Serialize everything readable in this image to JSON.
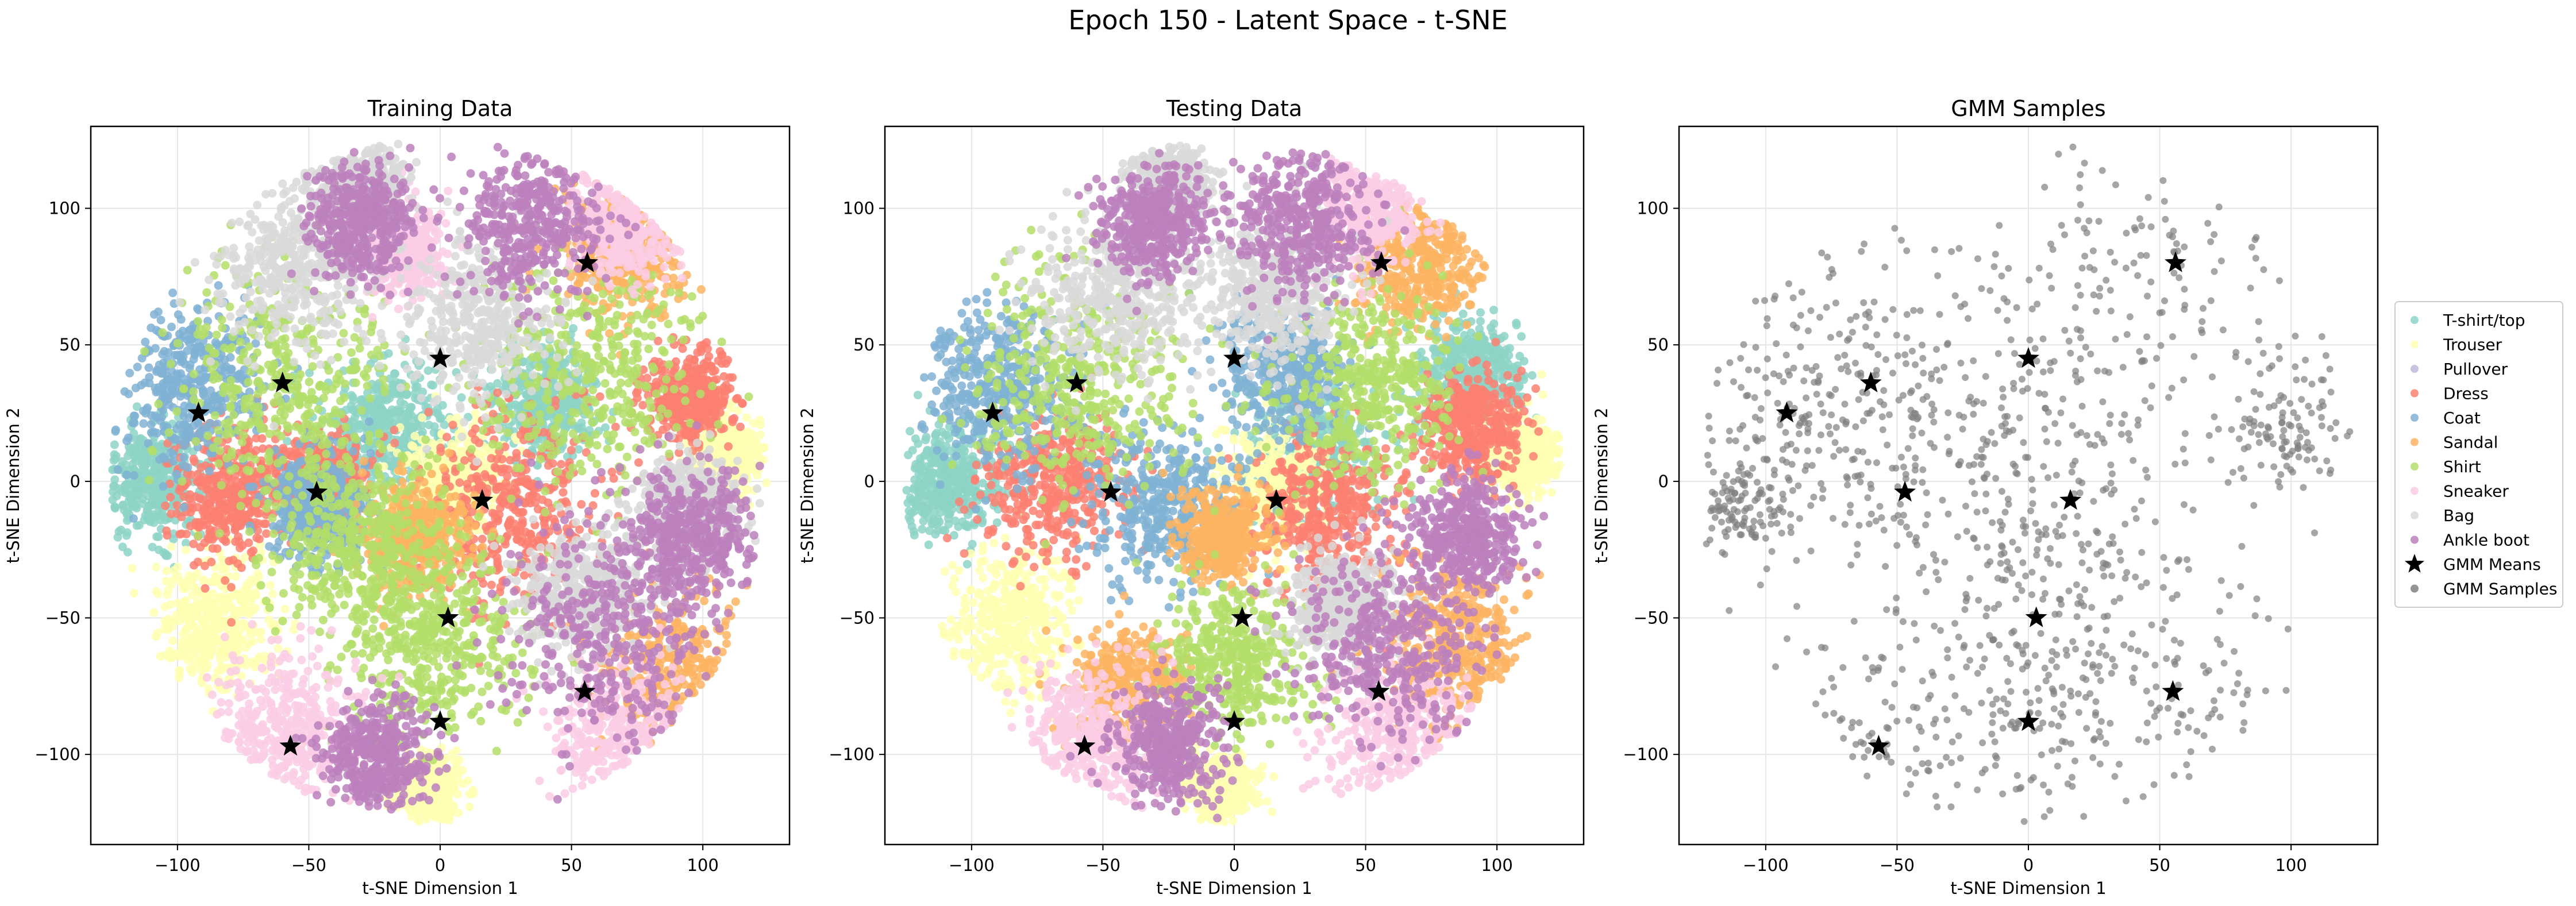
{
  "suptitle": "Epoch 150 - Latent Space - t-SNE",
  "legend": {
    "placement": "outside-right",
    "entries": [
      {
        "label": "T-shirt/top",
        "color": "#8dd3c7",
        "marker": "circle"
      },
      {
        "label": "Trouser",
        "color": "#ffffb3",
        "marker": "circle"
      },
      {
        "label": "Pullover",
        "color": "#bebada",
        "marker": "circle"
      },
      {
        "label": "Dress",
        "color": "#fb8072",
        "marker": "circle"
      },
      {
        "label": "Coat",
        "color": "#80b1d3",
        "marker": "circle"
      },
      {
        "label": "Sandal",
        "color": "#fdb462",
        "marker": "circle"
      },
      {
        "label": "Shirt",
        "color": "#b3de69",
        "marker": "circle"
      },
      {
        "label": "Sneaker",
        "color": "#fccde5",
        "marker": "circle"
      },
      {
        "label": "Bag",
        "color": "#d9d9d9",
        "marker": "circle"
      },
      {
        "label": "Ankle boot",
        "color": "#bc80bd",
        "marker": "circle"
      },
      {
        "label": "GMM Means",
        "color": "#000000",
        "marker": "star"
      },
      {
        "label": "GMM Samples",
        "color": "#808080",
        "marker": "circle"
      }
    ]
  },
  "chart_data": [
    {
      "type": "scatter",
      "title": "Training Data",
      "xlabel": "t-SNE Dimension 1",
      "ylabel": "t-SNE Dimension 2",
      "xlim": [
        -133,
        133
      ],
      "ylim": [
        -133,
        130
      ],
      "xticks": [
        -100,
        -50,
        0,
        50,
        100
      ],
      "yticks": [
        -100,
        -50,
        0,
        50,
        100
      ],
      "xtick_labels": [
        "−100",
        "−50",
        "0",
        "50",
        "100"
      ],
      "ytick_labels": [
        "−100",
        "−50",
        "0",
        "50",
        "100"
      ],
      "grid": true,
      "point_clusters": [
        {
          "class": "T-shirt/top",
          "color": "#8dd3c7",
          "x": -110,
          "y": 0,
          "spread": 10
        },
        {
          "class": "T-shirt/top",
          "color": "#8dd3c7",
          "x": -20,
          "y": 20,
          "spread": 12
        },
        {
          "class": "T-shirt/top",
          "color": "#8dd3c7",
          "x": 40,
          "y": 30,
          "spread": 10
        },
        {
          "class": "Trouser",
          "color": "#ffffb3",
          "x": -85,
          "y": -52,
          "spread": 12
        },
        {
          "class": "Trouser",
          "color": "#ffffb3",
          "x": 108,
          "y": 10,
          "spread": 7
        },
        {
          "class": "Trouser",
          "color": "#ffffb3",
          "x": 5,
          "y": 0,
          "spread": 10
        },
        {
          "class": "Trouser",
          "color": "#ffffb3",
          "x": -5,
          "y": -112,
          "spread": 6
        },
        {
          "class": "Dress",
          "color": "#fb8072",
          "x": -80,
          "y": -5,
          "spread": 12
        },
        {
          "class": "Dress",
          "color": "#fb8072",
          "x": 30,
          "y": -10,
          "spread": 18
        },
        {
          "class": "Dress",
          "color": "#fb8072",
          "x": 95,
          "y": 30,
          "spread": 8
        },
        {
          "class": "Dress",
          "color": "#fb8072",
          "x": -45,
          "y": 0,
          "spread": 8
        },
        {
          "class": "Coat",
          "color": "#80b1d3",
          "x": -95,
          "y": 35,
          "spread": 15
        },
        {
          "class": "Coat",
          "color": "#80b1d3",
          "x": -45,
          "y": -10,
          "spread": 10
        },
        {
          "class": "Sandal",
          "color": "#fdb462",
          "x": 70,
          "y": 85,
          "spread": 12
        },
        {
          "class": "Sandal",
          "color": "#fdb462",
          "x": 90,
          "y": -70,
          "spread": 15
        },
        {
          "class": "Sandal",
          "color": "#fdb462",
          "x": -10,
          "y": -20,
          "spread": 10
        },
        {
          "class": "Shirt",
          "color": "#b3de69",
          "x": -60,
          "y": 35,
          "spread": 22
        },
        {
          "class": "Shirt",
          "color": "#b3de69",
          "x": 55,
          "y": 40,
          "spread": 22
        },
        {
          "class": "Shirt",
          "color": "#b3de69",
          "x": 0,
          "y": -60,
          "spread": 18
        },
        {
          "class": "Shirt",
          "color": "#b3de69",
          "x": -30,
          "y": -25,
          "spread": 18
        },
        {
          "class": "Sneaker",
          "color": "#fccde5",
          "x": -60,
          "y": -92,
          "spread": 15
        },
        {
          "class": "Sneaker",
          "color": "#fccde5",
          "x": 70,
          "y": -95,
          "spread": 15
        },
        {
          "class": "Sneaker",
          "color": "#fccde5",
          "x": 70,
          "y": 95,
          "spread": 10
        },
        {
          "class": "Sneaker",
          "color": "#fccde5",
          "x": -15,
          "y": 85,
          "spread": 8
        },
        {
          "class": "Bag",
          "color": "#d9d9d9",
          "x": -55,
          "y": 80,
          "spread": 15
        },
        {
          "class": "Bag",
          "color": "#d9d9d9",
          "x": 15,
          "y": 60,
          "spread": 15
        },
        {
          "class": "Bag",
          "color": "#d9d9d9",
          "x": 55,
          "y": -40,
          "spread": 12
        },
        {
          "class": "Bag",
          "color": "#d9d9d9",
          "x": 95,
          "y": -10,
          "spread": 10
        },
        {
          "class": "Bag",
          "color": "#d9d9d9",
          "x": -30,
          "y": 110,
          "spread": 8
        },
        {
          "class": "Ankle boot",
          "color": "#bc80bd",
          "x": 35,
          "y": 95,
          "spread": 14
        },
        {
          "class": "Ankle boot",
          "color": "#bc80bd",
          "x": 65,
          "y": -55,
          "spread": 20
        },
        {
          "class": "Ankle boot",
          "color": "#bc80bd",
          "x": -30,
          "y": 95,
          "spread": 10
        },
        {
          "class": "Ankle boot",
          "color": "#bc80bd",
          "x": 95,
          "y": -20,
          "spread": 12
        },
        {
          "class": "Ankle boot",
          "color": "#bc80bd",
          "x": -25,
          "y": -100,
          "spread": 10
        }
      ],
      "gmm_means": [
        [
          56,
          80
        ],
        [
          0,
          45
        ],
        [
          -60,
          36
        ],
        [
          -92,
          25
        ],
        [
          -47,
          -4
        ],
        [
          16,
          -7
        ],
        [
          3,
          -50
        ],
        [
          0,
          -88
        ],
        [
          -57,
          -97
        ],
        [
          55,
          -77
        ]
      ]
    },
    {
      "type": "scatter",
      "title": "Testing Data",
      "xlabel": "t-SNE Dimension 1",
      "ylabel": "t-SNE Dimension 2",
      "xlim": [
        -133,
        133
      ],
      "ylim": [
        -133,
        130
      ],
      "xticks": [
        -100,
        -50,
        0,
        50,
        100
      ],
      "yticks": [
        -100,
        -50,
        0,
        50,
        100
      ],
      "xtick_labels": [
        "−100",
        "−50",
        "0",
        "50",
        "100"
      ],
      "ytick_labels": [
        "−100",
        "−50",
        "0",
        "50",
        "100"
      ],
      "grid": true,
      "point_clusters": [
        {
          "class": "T-shirt/top",
          "color": "#8dd3c7",
          "x": -110,
          "y": 0,
          "spread": 10
        },
        {
          "class": "T-shirt/top",
          "color": "#8dd3c7",
          "x": 30,
          "y": 10,
          "spread": 12
        },
        {
          "class": "T-shirt/top",
          "color": "#8dd3c7",
          "x": 90,
          "y": 40,
          "spread": 10
        },
        {
          "class": "Trouser",
          "color": "#ffffb3",
          "x": -85,
          "y": -52,
          "spread": 12
        },
        {
          "class": "Trouser",
          "color": "#ffffb3",
          "x": 108,
          "y": 10,
          "spread": 7
        },
        {
          "class": "Trouser",
          "color": "#ffffb3",
          "x": 15,
          "y": 0,
          "spread": 10
        },
        {
          "class": "Trouser",
          "color": "#ffffb3",
          "x": -5,
          "y": -112,
          "spread": 6
        },
        {
          "class": "Dress",
          "color": "#fb8072",
          "x": -70,
          "y": 0,
          "spread": 14
        },
        {
          "class": "Dress",
          "color": "#fb8072",
          "x": 35,
          "y": -10,
          "spread": 14
        },
        {
          "class": "Dress",
          "color": "#fb8072",
          "x": 90,
          "y": 20,
          "spread": 10
        },
        {
          "class": "Coat",
          "color": "#80b1d3",
          "x": -90,
          "y": 35,
          "spread": 14
        },
        {
          "class": "Coat",
          "color": "#80b1d3",
          "x": -25,
          "y": -10,
          "spread": 14
        },
        {
          "class": "Coat",
          "color": "#80b1d3",
          "x": 20,
          "y": 40,
          "spread": 12
        },
        {
          "class": "Sandal",
          "color": "#fdb462",
          "x": 70,
          "y": 80,
          "spread": 12
        },
        {
          "class": "Sandal",
          "color": "#fdb462",
          "x": 85,
          "y": -60,
          "spread": 14
        },
        {
          "class": "Sandal",
          "color": "#fdb462",
          "x": -5,
          "y": -20,
          "spread": 8
        },
        {
          "class": "Sandal",
          "color": "#fdb462",
          "x": -40,
          "y": -75,
          "spread": 10
        },
        {
          "class": "Shirt",
          "color": "#b3de69",
          "x": -60,
          "y": 35,
          "spread": 20
        },
        {
          "class": "Shirt",
          "color": "#b3de69",
          "x": 50,
          "y": 35,
          "spread": 18
        },
        {
          "class": "Shirt",
          "color": "#b3de69",
          "x": 0,
          "y": -65,
          "spread": 14
        },
        {
          "class": "Sneaker",
          "color": "#fccde5",
          "x": -55,
          "y": -95,
          "spread": 14
        },
        {
          "class": "Sneaker",
          "color": "#fccde5",
          "x": 65,
          "y": -95,
          "spread": 14
        },
        {
          "class": "Sneaker",
          "color": "#fccde5",
          "x": 50,
          "y": 100,
          "spread": 10
        },
        {
          "class": "Bag",
          "color": "#d9d9d9",
          "x": -45,
          "y": 70,
          "spread": 15
        },
        {
          "class": "Bag",
          "color": "#d9d9d9",
          "x": 15,
          "y": 70,
          "spread": 14
        },
        {
          "class": "Bag",
          "color": "#d9d9d9",
          "x": 40,
          "y": -45,
          "spread": 10
        },
        {
          "class": "Bag",
          "color": "#d9d9d9",
          "x": -25,
          "y": 110,
          "spread": 8
        },
        {
          "class": "Ankle boot",
          "color": "#bc80bd",
          "x": 25,
          "y": 95,
          "spread": 14
        },
        {
          "class": "Ankle boot",
          "color": "#bc80bd",
          "x": 60,
          "y": -60,
          "spread": 18
        },
        {
          "class": "Ankle boot",
          "color": "#bc80bd",
          "x": -30,
          "y": 95,
          "spread": 10
        },
        {
          "class": "Ankle boot",
          "color": "#bc80bd",
          "x": -25,
          "y": -95,
          "spread": 10
        },
        {
          "class": "Ankle boot",
          "color": "#bc80bd",
          "x": 90,
          "y": -20,
          "spread": 10
        }
      ],
      "gmm_means": [
        [
          56,
          80
        ],
        [
          0,
          45
        ],
        [
          -60,
          36
        ],
        [
          -92,
          25
        ],
        [
          -47,
          -4
        ],
        [
          16,
          -7
        ],
        [
          3,
          -50
        ],
        [
          0,
          -88
        ],
        [
          -57,
          -97
        ],
        [
          55,
          -77
        ]
      ]
    },
    {
      "type": "scatter",
      "title": "GMM Samples",
      "xlabel": "t-SNE Dimension 1",
      "ylabel": "t-SNE Dimension 2",
      "xlim": [
        -133,
        133
      ],
      "ylim": [
        -133,
        130
      ],
      "xticks": [
        -100,
        -50,
        0,
        50,
        100
      ],
      "yticks": [
        -100,
        -50,
        0,
        50,
        100
      ],
      "xtick_labels": [
        "−100",
        "−50",
        "0",
        "50",
        "100"
      ],
      "ytick_labels": [
        "−100",
        "−50",
        "0",
        "50",
        "100"
      ],
      "grid": true,
      "point_clusters": [
        {
          "class": "GMM Samples",
          "color": "#808080",
          "x": 56,
          "y": 80,
          "spread": 28
        },
        {
          "class": "GMM Samples",
          "color": "#808080",
          "x": 0,
          "y": 45,
          "spread": 28
        },
        {
          "class": "GMM Samples",
          "color": "#808080",
          "x": -60,
          "y": 36,
          "spread": 28
        },
        {
          "class": "GMM Samples",
          "color": "#808080",
          "x": -92,
          "y": 25,
          "spread": 22
        },
        {
          "class": "GMM Samples",
          "color": "#808080",
          "x": -47,
          "y": -4,
          "spread": 28
        },
        {
          "class": "GMM Samples",
          "color": "#808080",
          "x": 16,
          "y": -7,
          "spread": 28
        },
        {
          "class": "GMM Samples",
          "color": "#808080",
          "x": 3,
          "y": -50,
          "spread": 26
        },
        {
          "class": "GMM Samples",
          "color": "#808080",
          "x": 0,
          "y": -88,
          "spread": 22
        },
        {
          "class": "GMM Samples",
          "color": "#808080",
          "x": -57,
          "y": -97,
          "spread": 22
        },
        {
          "class": "GMM Samples",
          "color": "#808080",
          "x": 55,
          "y": -77,
          "spread": 26
        },
        {
          "class": "GMM Samples",
          "color": "#808080",
          "x": 100,
          "y": 20,
          "spread": 14
        },
        {
          "class": "GMM Samples",
          "color": "#808080",
          "x": -110,
          "y": -10,
          "spread": 10
        }
      ],
      "gmm_means": [
        [
          56,
          80
        ],
        [
          0,
          45
        ],
        [
          -60,
          36
        ],
        [
          -92,
          25
        ],
        [
          -47,
          -4
        ],
        [
          16,
          -7
        ],
        [
          3,
          -50
        ],
        [
          0,
          -88
        ],
        [
          -57,
          -97
        ],
        [
          55,
          -77
        ]
      ]
    }
  ]
}
